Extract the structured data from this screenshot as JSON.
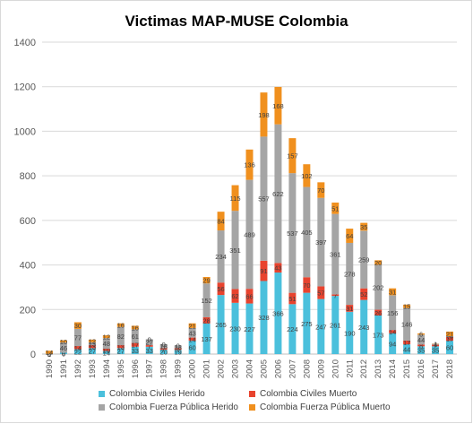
{
  "chart_data": {
    "type": "bar",
    "stacked": true,
    "title": "Victimas MAP-MUSE Colombia",
    "xlabel": "",
    "ylabel": "",
    "ylim": [
      0,
      1400
    ],
    "yticks": [
      0,
      200,
      400,
      600,
      800,
      1000,
      1200,
      1400
    ],
    "grid": true,
    "legend_position": "bottom",
    "categories": [
      "1990",
      "1991",
      "1992",
      "1993",
      "1994",
      "1995",
      "1996",
      "1997",
      "1998",
      "1999",
      "2000",
      "2001",
      "2002",
      "2003",
      "2004",
      "2005",
      "2006",
      "2007",
      "2008",
      "2009",
      "2010",
      "2011",
      "2012",
      "2013",
      "2014",
      "2015",
      "2016",
      "2017",
      "2018"
    ],
    "series": [
      {
        "name": "Colombia Civiles Herido",
        "color": "#4bc0dc",
        "values": [
          1,
          6,
          22,
          27,
          14,
          27,
          33,
          33,
          20,
          19,
          60,
          137,
          265,
          230,
          227,
          328,
          366,
          224,
          275,
          247,
          261,
          190,
          243,
          173,
          94,
          44,
          35,
          35,
          60
        ]
      },
      {
        "name": "Colombia Civiles Muerto",
        "color": "#e8432e",
        "values": [
          0,
          0,
          14,
          13,
          10,
          13,
          17,
          7,
          7,
          7,
          14,
          28,
          56,
          62,
          66,
          91,
          43,
          51,
          70,
          57,
          7,
          31,
          52,
          26,
          14,
          17,
          8,
          7,
          17
        ]
      },
      {
        "name": "Colombia Fuerza Pública Herido",
        "color": "#a5a5a5",
        "values": [
          0,
          46,
          77,
          13,
          48,
          82,
          61,
          27,
          18,
          13,
          43,
          152,
          234,
          351,
          489,
          557,
          622,
          537,
          405,
          397,
          361,
          278,
          259,
          202,
          156,
          146,
          44,
          4,
          3
        ]
      },
      {
        "name": "Colombia Fuerza Pública Muerto",
        "color": "#f0901e",
        "values": [
          14,
          10,
          30,
          12,
          12,
          16,
          16,
          0,
          0,
          0,
          21,
          29,
          84,
          115,
          136,
          198,
          168,
          157,
          102,
          70,
          51,
          64,
          35,
          20,
          31,
          15,
          6,
          1,
          21
        ]
      }
    ]
  }
}
